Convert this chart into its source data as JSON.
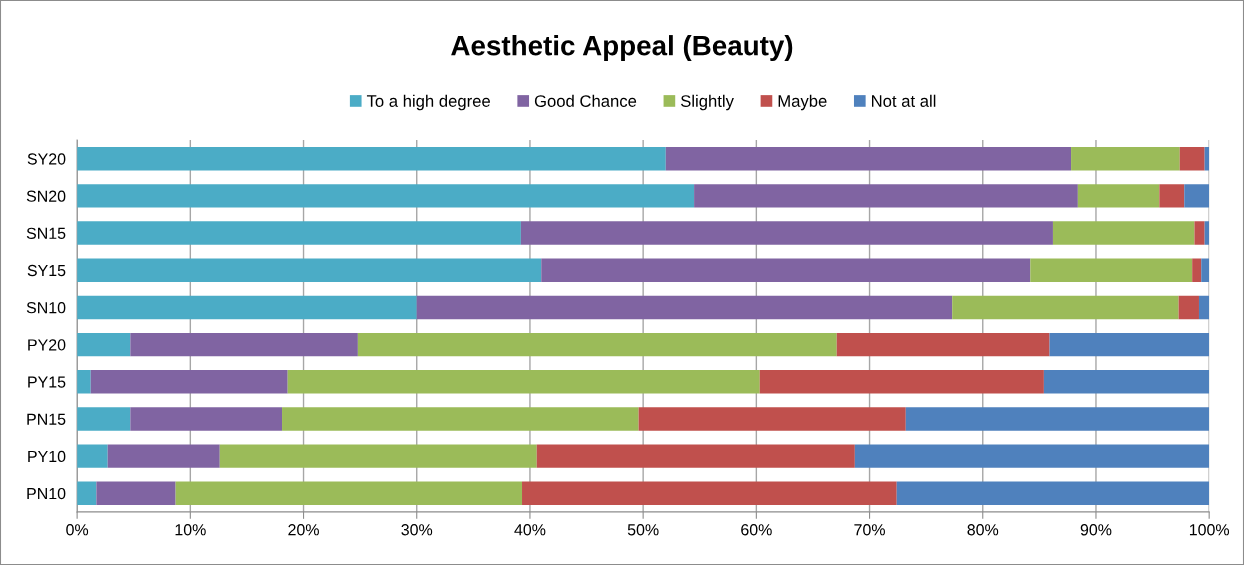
{
  "chart_data": {
    "type": "bar",
    "orientation": "horizontal",
    "stacked": true,
    "title": "Aesthetic Appeal (Beauty)",
    "categories": [
      "SY20",
      "SN20",
      "SN15",
      "SY15",
      "SN10",
      "PY20",
      "PY15",
      "PN15",
      "PY10",
      "PN10"
    ],
    "series": [
      {
        "name": "To a high degree",
        "color": "#4bacc6",
        "values": [
          52.0,
          54.5,
          39.2,
          41.0,
          30.0,
          4.7,
          1.2,
          4.7,
          2.7,
          1.7
        ]
      },
      {
        "name": "Good Chance",
        "color": "#8064a2",
        "values": [
          35.8,
          33.9,
          47.0,
          43.2,
          47.3,
          20.1,
          17.4,
          13.4,
          9.9,
          7.0
        ]
      },
      {
        "name": "Slightly",
        "color": "#9bbb59",
        "values": [
          9.6,
          7.2,
          12.5,
          14.3,
          20.0,
          42.3,
          41.7,
          31.5,
          28.0,
          30.6
        ]
      },
      {
        "name": "Maybe",
        "color": "#c0504d",
        "values": [
          2.2,
          2.2,
          0.9,
          0.8,
          1.8,
          18.8,
          25.1,
          23.6,
          28.1,
          33.1
        ]
      },
      {
        "name": "Not at all",
        "color": "#4f81bd",
        "values": [
          0.4,
          2.2,
          0.4,
          0.7,
          0.9,
          14.1,
          14.6,
          26.8,
          31.3,
          27.6
        ]
      }
    ],
    "xlim": [
      0,
      100
    ],
    "xticks": [
      {
        "value": 0,
        "label": "0%"
      },
      {
        "value": 10,
        "label": "10%"
      },
      {
        "value": 20,
        "label": "20%"
      },
      {
        "value": 30,
        "label": "30%"
      },
      {
        "value": 40,
        "label": "40%"
      },
      {
        "value": 50,
        "label": "50%"
      },
      {
        "value": 60,
        "label": "60%"
      },
      {
        "value": 70,
        "label": "70%"
      },
      {
        "value": 80,
        "label": "80%"
      },
      {
        "value": 90,
        "label": "90%"
      },
      {
        "value": 100,
        "label": "100%"
      }
    ],
    "grid": "x",
    "legend": "top"
  }
}
